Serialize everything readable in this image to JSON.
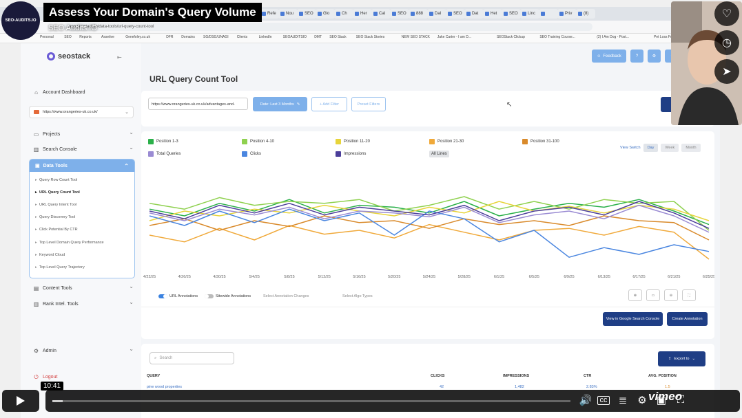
{
  "video": {
    "title": "Assess Your Domain's Query Volume",
    "subtitle": "SEO Audits.IO",
    "brand_badge": "SEO-AUDITS.IO",
    "timestamp": "10:41",
    "progress": 0.02,
    "vimeo_label": "vimeo"
  },
  "browser": {
    "tabs": [
      "Seo",
      "Refe",
      "Nou",
      "SEO",
      "Glo",
      "Ch",
      "Her",
      "Cal",
      "SEO",
      "888",
      "Dal",
      "SEO",
      "Dat",
      "Het",
      "SEO",
      "Linc",
      "",
      "Priv",
      "(8)"
    ],
    "url": "app.seostack.io/data-tools/url-query-count-tool",
    "bookmarks": [
      "Personal",
      "SEO",
      "Reports",
      "Assetive",
      "Genefoley.co.uk",
      "DFR",
      "Domains",
      "SG/DSG/UNAGI",
      "Clients",
      "LinkedIn",
      "SEOAUDITSIO",
      "DMT",
      "SEO Stack",
      "SEO Stack Stories",
      "NEW SEO STACK",
      "Jake Carter - I am D...",
      "SEOStack Clickup",
      "SEO Training Course...",
      "(2) I Am Dog - Post...",
      "Pet Loss Forum",
      "https://pmt.io/?dg..."
    ]
  },
  "app": {
    "logo": "seostack",
    "header": {
      "feedback": "Feedback",
      "user_initial": "A"
    },
    "sidebar": {
      "account_dashboard": "Account Dashboard",
      "domain": "https://www.orangeries-uk.co.uk/",
      "projects": "Projects",
      "search_console": "Search Console",
      "data_tools": "Data Tools",
      "data_tools_items": [
        "Query Row Count Tool",
        "URL Query Count Tool",
        "URL Query Intent Tool",
        "Query Discovery Tool",
        "Click Potential By CTR",
        "Top Level Domain Query Performance",
        "Keyword Cloud",
        "Top Level Query Trajectory"
      ],
      "active_item": "URL Query Count Tool",
      "content_tools": "Content Tools",
      "rank_intel_tools": "Rank Intel. Tools",
      "admin": "Admin",
      "logout": "Logout"
    },
    "page_title": "URL Query Count Tool",
    "filters": {
      "url_value": "https://www.orangeries-uk.co.uk/advantages-and-",
      "date_button": "Date: Last 3 Months",
      "add_filter": "+ Add Filter",
      "preset_filters": "Preset Filters"
    },
    "chart_controls": {
      "view_switch": "View Switch",
      "day": "Day",
      "week": "Week",
      "month": "Month",
      "all_lines": "All Lines",
      "url_annotations": "URL Annotations",
      "sitewide_annotations": "Sitewide Annotations",
      "select_annotation_changes": "Select Annotation Changes",
      "select_algo_types": "Select Algo Types",
      "view_in_gsc": "View in Google Search Console",
      "create_annotation": "Create Annotation"
    },
    "table": {
      "search_placeholder": "Search",
      "export": "Export to",
      "columns": [
        "QUERY",
        "CLICKS",
        "IMPRESSIONS",
        "CTR",
        "AVG. POSITION"
      ],
      "first_row": {
        "query": "pine wood properties",
        "clicks": "42",
        "impressions": "1,482",
        "ctr": "2.83%",
        "position": "1.5"
      }
    }
  },
  "colors": {
    "accent": "#7eb0ea",
    "dark_button": "#1f3e85",
    "pos_1_3": "#2bb04a",
    "pos_4_10": "#8fd14f",
    "pos_11_20": "#e7d43a",
    "pos_21_30": "#f0a93a",
    "pos_31_100": "#d98a2b",
    "total_queries": "#9a8bd3",
    "clicks": "#4a86e0",
    "impressions": "#4b3e9a"
  },
  "chart_data": {
    "type": "line",
    "x": [
      "4/22/25",
      "4/26/25",
      "4/30/25",
      "5/4/25",
      "5/8/25",
      "5/12/25",
      "5/16/25",
      "5/20/25",
      "5/24/25",
      "5/28/25",
      "6/1/25",
      "6/5/25",
      "6/9/25",
      "6/13/25",
      "6/17/25",
      "6/21/25",
      "6/25/25"
    ],
    "series": [
      {
        "name": "Position 1-3",
        "color": "#2bb04a",
        "values": [
          0.62,
          0.55,
          0.68,
          0.6,
          0.72,
          0.58,
          0.66,
          0.64,
          0.58,
          0.7,
          0.55,
          0.62,
          0.68,
          0.64,
          0.72,
          0.6,
          0.46
        ]
      },
      {
        "name": "Position 4-10",
        "color": "#8fd14f",
        "values": [
          0.68,
          0.62,
          0.74,
          0.66,
          0.7,
          0.68,
          0.72,
          0.6,
          0.66,
          0.75,
          0.62,
          0.7,
          0.62,
          0.72,
          0.68,
          0.7,
          0.4
        ]
      },
      {
        "name": "Position 11-20",
        "color": "#e7d43a",
        "values": [
          0.5,
          0.6,
          0.55,
          0.62,
          0.58,
          0.66,
          0.6,
          0.55,
          0.64,
          0.58,
          0.7,
          0.6,
          0.65,
          0.58,
          0.66,
          0.62,
          0.5
        ]
      },
      {
        "name": "Position 21-30",
        "color": "#f0a93a",
        "values": [
          0.35,
          0.28,
          0.42,
          0.3,
          0.45,
          0.36,
          0.4,
          0.32,
          0.46,
          0.38,
          0.3,
          0.4,
          0.42,
          0.35,
          0.44,
          0.38,
          0.1
        ]
      },
      {
        "name": "Position 31-100",
        "color": "#d98a2b",
        "values": [
          0.45,
          0.52,
          0.4,
          0.5,
          0.44,
          0.55,
          0.48,
          0.5,
          0.42,
          0.52,
          0.46,
          0.5,
          0.45,
          0.55,
          0.5,
          0.48,
          0.3
        ]
      },
      {
        "name": "Total Queries",
        "color": "#9a8bd3",
        "values": [
          0.58,
          0.5,
          0.62,
          0.56,
          0.64,
          0.52,
          0.6,
          0.58,
          0.54,
          0.64,
          0.48,
          0.56,
          0.6,
          0.52,
          0.66,
          0.55,
          0.38
        ]
      },
      {
        "name": "Clicks",
        "color": "#4a86e0",
        "values": [
          0.55,
          0.45,
          0.6,
          0.48,
          0.62,
          0.5,
          0.58,
          0.35,
          0.6,
          0.52,
          0.28,
          0.4,
          0.12,
          0.22,
          0.15,
          0.25,
          0.18
        ]
      },
      {
        "name": "Impressions",
        "color": "#4b3e9a",
        "values": [
          0.6,
          0.52,
          0.66,
          0.58,
          0.68,
          0.56,
          0.64,
          0.6,
          0.56,
          0.66,
          0.5,
          0.6,
          0.64,
          0.56,
          0.7,
          0.58,
          0.42
        ]
      }
    ],
    "grid": false,
    "legend": "top"
  }
}
